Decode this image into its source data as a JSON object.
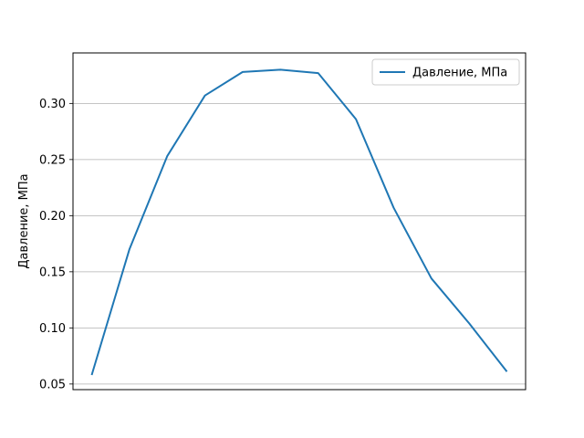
{
  "chart_data": {
    "type": "line",
    "title": "",
    "xlabel": "",
    "ylabel": "Давление, МПа",
    "ylim": [
      0.045,
      0.345
    ],
    "yticks": [
      0.05,
      0.1,
      0.15,
      0.2,
      0.25,
      0.3
    ],
    "ytick_labels": [
      "0.05",
      "0.10",
      "0.15",
      "0.20",
      "0.25",
      "0.30"
    ],
    "x_ticks_shown": false,
    "grid": "y-major",
    "legend_position": "top-right",
    "series": [
      {
        "name": "Давление, МПа",
        "color": "#1f77b4",
        "x": [
          0,
          1,
          2,
          3,
          4,
          5,
          6,
          7,
          8,
          9,
          10,
          11
        ],
        "y": [
          0.058,
          0.17,
          0.253,
          0.307,
          0.328,
          0.33,
          0.327,
          0.286,
          0.207,
          0.144,
          0.104,
          0.061
        ]
      }
    ]
  }
}
